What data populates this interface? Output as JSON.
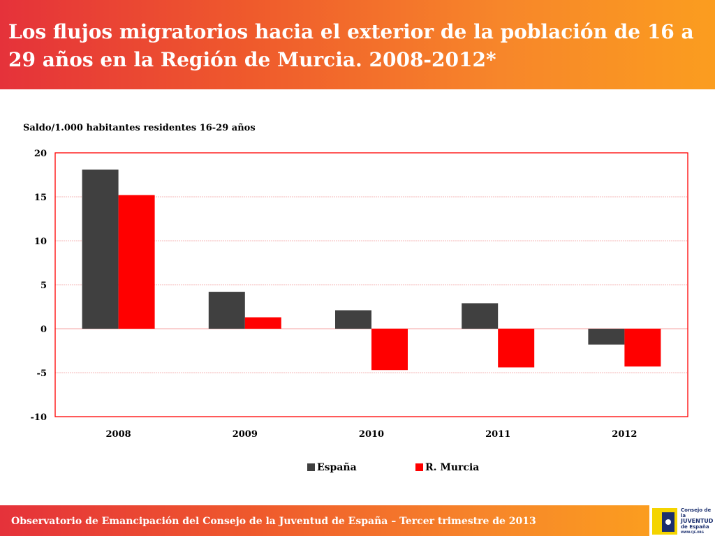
{
  "header": {
    "title": "Los flujos migratorios hacia el exterior de la población de 16 a 29 años en la Región de Murcia. 2008-2012*"
  },
  "chart_data": {
    "type": "bar",
    "title": "Los flujos migratorios hacia el exterior de la población de 16 a 29 años en la Región de Murcia. 2008-2012*",
    "ylabel": "Saldo/1.000 habitantes residentes 16-29 años",
    "xlabel": "",
    "categories": [
      "2008",
      "2009",
      "2010",
      "2011",
      "2012"
    ],
    "series": [
      {
        "name": "España",
        "color": "#404040",
        "values": [
          18.1,
          4.2,
          2.1,
          2.9,
          -1.8
        ]
      },
      {
        "name": "R. Murcia",
        "color": "#ff0000",
        "values": [
          15.2,
          1.3,
          -4.7,
          -4.4,
          -4.3
        ]
      }
    ],
    "ylim": [
      -10,
      20
    ],
    "yticks": [
      20,
      15,
      10,
      5,
      0,
      -5,
      -10
    ],
    "grid": true,
    "legend_position": "bottom"
  },
  "footer": {
    "text": "Observatorio de Emancipación del Consejo de la Juventud de España – Tercer trimestre de 2013"
  },
  "logo": {
    "line1": "Consejo de la",
    "line2": "JUVENTUD",
    "line3": "de España",
    "url": "WWW.CJE.ORG"
  }
}
